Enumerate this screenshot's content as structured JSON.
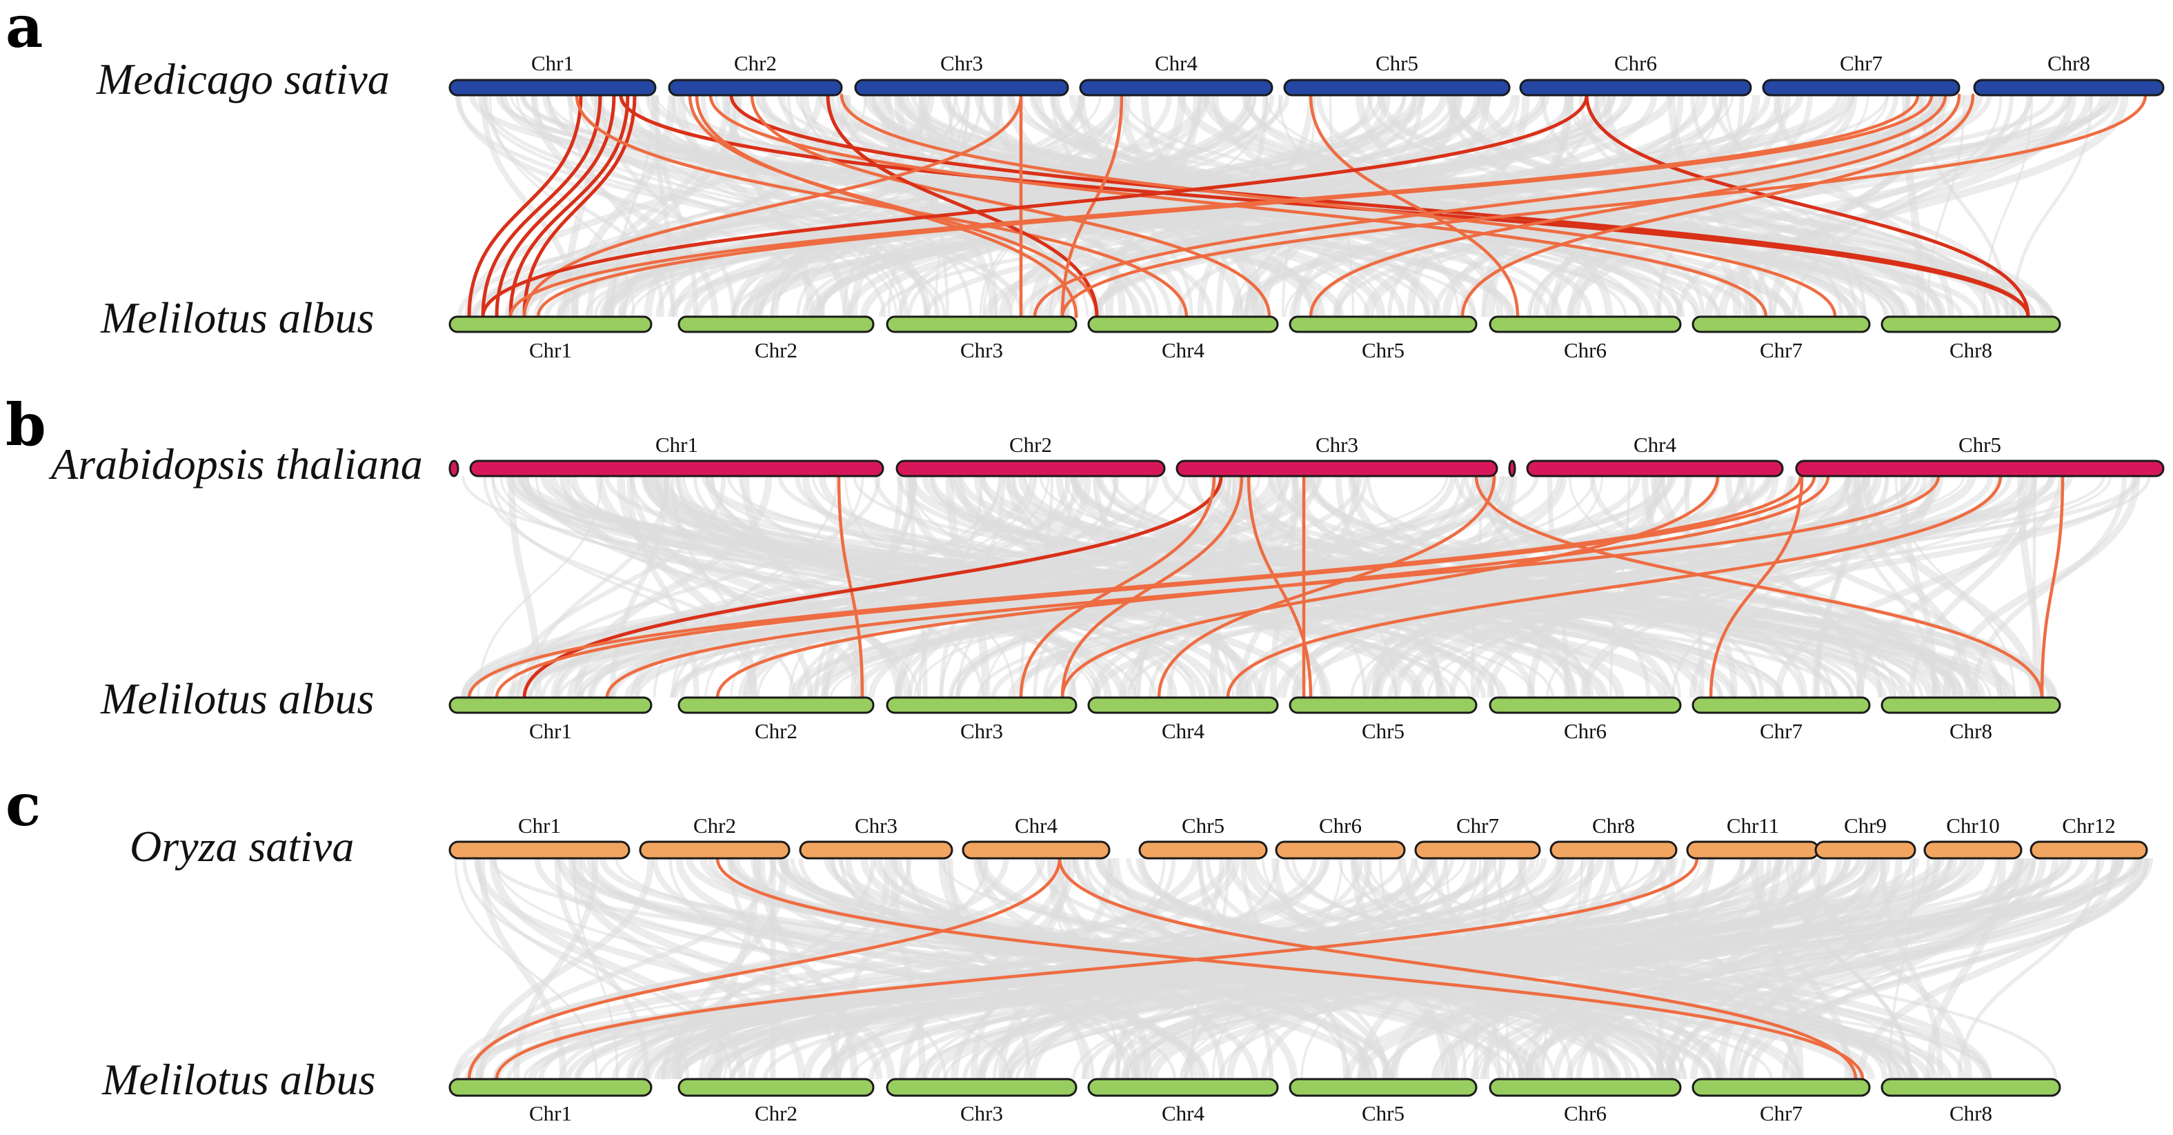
{
  "colors": {
    "medicago": "#2547a3",
    "arabidopsis": "#d6185a",
    "oryza": "#f2a560",
    "melilotus": "#98cd5f",
    "highlight_dark": "#d93018",
    "highlight_light": "#ee6c42",
    "background_link": "#dddddd"
  },
  "panels": [
    {
      "letter": "a",
      "top": {
        "species": "Medicago sativa",
        "color_key": "medicago",
        "chromosomes": [
          {
            "name": "Chr1",
            "label": "Chr1"
          },
          {
            "name": "Chr2",
            "label": "Chr2"
          },
          {
            "name": "Chr3",
            "label": "Chr3"
          },
          {
            "name": "Chr4",
            "label": "Chr4"
          },
          {
            "name": "Chr5",
            "label": "Chr5"
          },
          {
            "name": "Chr6",
            "label": "Chr6"
          },
          {
            "name": "Chr7",
            "label": "Chr7"
          },
          {
            "name": "Chr8",
            "label": "Chr8"
          }
        ]
      },
      "bottom": {
        "species": "Melilotus albus",
        "color_key": "melilotus",
        "chromosomes": [
          {
            "name": "Chr1",
            "label": "Chr1"
          },
          {
            "name": "Chr2",
            "label": "Chr2"
          },
          {
            "name": "Chr3",
            "label": "Chr3"
          },
          {
            "name": "Chr4",
            "label": "Chr4"
          },
          {
            "name": "Chr5",
            "label": "Chr5"
          },
          {
            "name": "Chr6",
            "label": "Chr6"
          },
          {
            "name": "Chr7",
            "label": "Chr7"
          },
          {
            "name": "Chr8",
            "label": "Chr8"
          }
        ]
      }
    },
    {
      "letter": "b",
      "top": {
        "species": "Arabidopsis thaliana",
        "color_key": "arabidopsis",
        "chromosomes": [
          {
            "name": "",
            "label": ""
          },
          {
            "name": "Chr1",
            "label": "Chr1"
          },
          {
            "name": "Chr2",
            "label": "Chr2"
          },
          {
            "name": "Chr3",
            "label": "Chr3"
          },
          {
            "name": "",
            "label": ""
          },
          {
            "name": "Chr4",
            "label": "Chr4"
          },
          {
            "name": "Chr5",
            "label": "Chr5"
          }
        ]
      },
      "bottom": {
        "species": "Melilotus albus",
        "color_key": "melilotus",
        "chromosomes": [
          {
            "name": "Chr1",
            "label": "Chr1"
          },
          {
            "name": "Chr2",
            "label": "Chr2"
          },
          {
            "name": "Chr3",
            "label": "Chr3"
          },
          {
            "name": "Chr4",
            "label": "Chr4"
          },
          {
            "name": "Chr5",
            "label": "Chr5"
          },
          {
            "name": "Chr6",
            "label": "Chr6"
          },
          {
            "name": "Chr7",
            "label": "Chr7"
          },
          {
            "name": "Chr8",
            "label": "Chr8"
          }
        ]
      }
    },
    {
      "letter": "c",
      "top": {
        "species": "Oryza sativa",
        "color_key": "oryza",
        "chromosomes": [
          {
            "name": "Chr1",
            "label": "Chr1"
          },
          {
            "name": "Chr2",
            "label": "Chr2"
          },
          {
            "name": "Chr3",
            "label": "Chr3"
          },
          {
            "name": "Chr4",
            "label": "Chr4"
          },
          {
            "name": "Chr5",
            "label": "Chr5"
          },
          {
            "name": "Chr6",
            "label": "Chr6"
          },
          {
            "name": "Chr7",
            "label": "Chr7"
          },
          {
            "name": "Chr8",
            "label": "Chr8"
          },
          {
            "name": "Chr11",
            "label": "Chr11"
          },
          {
            "name": "Chr9",
            "label": "Chr9"
          },
          {
            "name": "Chr10",
            "label": "Chr10"
          },
          {
            "name": "Chr12",
            "label": "Chr12"
          }
        ]
      },
      "bottom": {
        "species": "Melilotus albus",
        "color_key": "melilotus",
        "chromosomes": [
          {
            "name": "Chr1",
            "label": "Chr1"
          },
          {
            "name": "Chr2",
            "label": "Chr2"
          },
          {
            "name": "Chr3",
            "label": "Chr3"
          },
          {
            "name": "Chr4",
            "label": "Chr4"
          },
          {
            "name": "Chr5",
            "label": "Chr5"
          },
          {
            "name": "Chr6",
            "label": "Chr6"
          },
          {
            "name": "Chr7",
            "label": "Chr7"
          },
          {
            "name": "Chr8",
            "label": "Chr8"
          }
        ]
      }
    }
  ]
}
